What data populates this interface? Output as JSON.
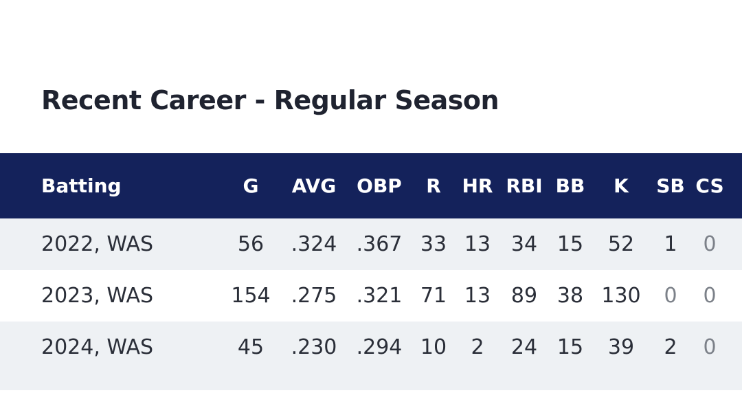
{
  "title": "Recent Career - Regular Season",
  "table": {
    "header": {
      "label": "Batting",
      "g": "G",
      "avg": "AVG",
      "obp": "OBP",
      "r": "R",
      "hr": "HR",
      "rbi": "RBI",
      "bb": "BB",
      "k": "K",
      "sb": "SB",
      "cs": "CS"
    },
    "rows": [
      {
        "season": "2022, WAS",
        "g": "56",
        "avg": ".324",
        "obp": ".367",
        "r": "33",
        "hr": "13",
        "rbi": "34",
        "bb": "15",
        "k": "52",
        "sb": "1",
        "cs": "0"
      },
      {
        "season": "2023, WAS",
        "g": "154",
        "avg": ".275",
        "obp": ".321",
        "r": "71",
        "hr": "13",
        "rbi": "89",
        "bb": "38",
        "k": "130",
        "sb": "0",
        "cs": "0"
      },
      {
        "season": "2024, WAS",
        "g": "45",
        "avg": ".230",
        "obp": ".294",
        "r": "10",
        "hr": "2",
        "rbi": "24",
        "bb": "15",
        "k": "39",
        "sb": "2",
        "cs": "0"
      }
    ]
  },
  "colors": {
    "header_bg": "#14225b",
    "stripe_bg": "#eef1f4",
    "text": "#1f2330",
    "zero_text": "#7c8189"
  }
}
